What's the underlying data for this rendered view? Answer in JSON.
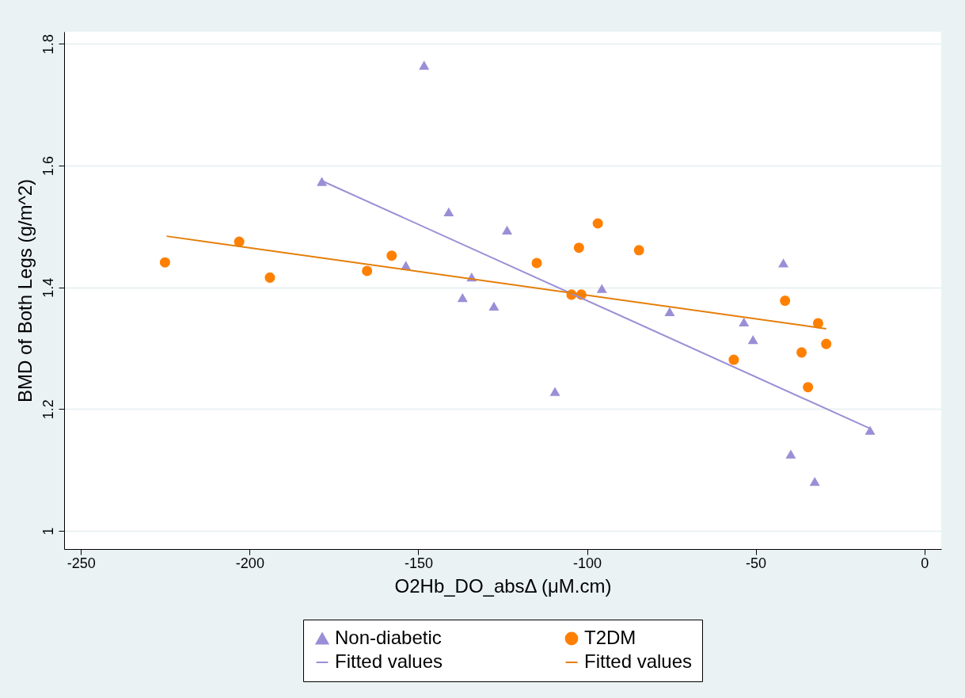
{
  "chart_data": {
    "type": "scatter",
    "xlabel": "O2Hb_DO_absΔ (μM.cm)",
    "ylabel": "BMD of Both Legs (g/m^2)",
    "xlim": [
      -255,
      5
    ],
    "xticks": [
      -250,
      -200,
      -150,
      -100,
      -50,
      0
    ],
    "ylim": [
      0.97,
      1.82
    ],
    "yticks": [
      1,
      1.2,
      1.4,
      1.6,
      1.8
    ],
    "grid": "y",
    "legend": "bottom",
    "series": [
      {
        "name": "Non-diabetic",
        "marker": "triangle",
        "color": "#9a8fd6",
        "x": [
          -178.6,
          -148.3,
          -141.0,
          -153.7,
          -136.9,
          -134.2,
          -127.6,
          -123.7,
          -109.5,
          -95.6,
          -75.5,
          -53.5,
          -50.8,
          -41.8,
          -39.6,
          -32.5,
          -16.1
        ],
        "values": [
          1.574,
          1.765,
          1.524,
          1.436,
          1.383,
          1.417,
          1.369,
          1.494,
          1.229,
          1.398,
          1.36,
          1.343,
          1.314,
          1.44,
          1.126,
          1.081,
          1.165
        ]
      },
      {
        "name": "T2DM",
        "marker": "circle",
        "color": "#ff8000",
        "x": [
          -225.1,
          -203.1,
          -194.0,
          -165.2,
          -157.9,
          -114.9,
          -104.6,
          -102.4,
          -101.7,
          -96.8,
          -84.6,
          -56.5,
          -41.3,
          -36.4,
          -34.5,
          -31.5,
          -29.1
        ],
        "values": [
          1.441,
          1.475,
          1.416,
          1.427,
          1.452,
          1.44,
          1.388,
          1.465,
          1.388,
          1.505,
          1.461,
          1.281,
          1.378,
          1.293,
          1.236,
          1.341,
          1.307
        ]
      },
      {
        "name": "Fitted values",
        "type": "line",
        "line_style": "solid",
        "color": "#9a8fd6",
        "x": [
          -178.6,
          -16.1
        ],
        "values": [
          1.575,
          1.168
        ]
      },
      {
        "name": "Fitted values",
        "type": "line",
        "line_style": "solid",
        "color": "#e57e0a",
        "x": [
          -224.6,
          -29.1
        ],
        "values": [
          1.484,
          1.332
        ]
      }
    ]
  }
}
